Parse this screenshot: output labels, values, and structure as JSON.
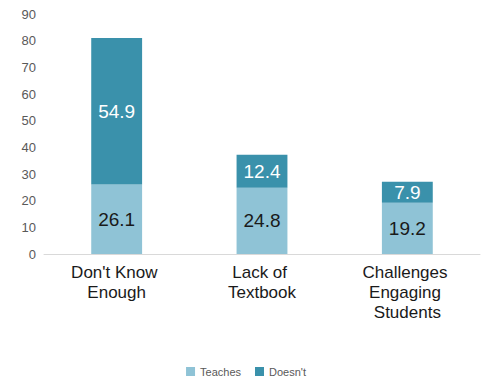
{
  "chart_data": {
    "type": "bar",
    "stacked": true,
    "data_labels": true,
    "grid": false,
    "legend": "bottom",
    "categories": [
      "Don't Know Enough",
      "Lack of Textbook",
      "Challenges Engaging Students"
    ],
    "series": [
      {
        "name": "Teaches",
        "color": "#8fc3d6",
        "values": [
          26.1,
          24.8,
          19.2
        ]
      },
      {
        "name": "Doesn't",
        "color": "#3a91ab",
        "values": [
          54.9,
          12.4,
          7.9
        ]
      }
    ],
    "ylim": [
      0,
      90
    ],
    "yticks": [
      0,
      10,
      20,
      30,
      40,
      50,
      60,
      70,
      80,
      90
    ]
  }
}
